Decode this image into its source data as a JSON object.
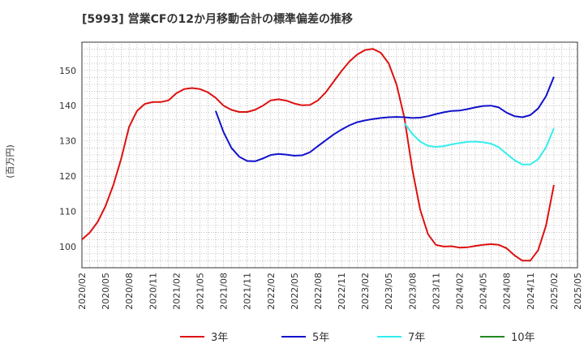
{
  "chart_data": {
    "type": "line",
    "title": "[5993]  営業CFの12か月移動合計の標準偏差の推移",
    "ylabel": "(百万円)",
    "xlabel": "",
    "ylim": [
      94,
      158
    ],
    "yticks": [
      100,
      110,
      120,
      130,
      140,
      150
    ],
    "xticks": [
      "2020/02",
      "2020/05",
      "2020/08",
      "2020/11",
      "2021/02",
      "2021/05",
      "2021/08",
      "2021/11",
      "2022/02",
      "2022/05",
      "2022/08",
      "2022/11",
      "2023/02",
      "2023/05",
      "2023/08",
      "2023/11",
      "2024/02",
      "2024/05",
      "2024/08",
      "2024/11",
      "2025/02",
      "2025/05"
    ],
    "grid": true,
    "legend_position": "bottom",
    "series": [
      {
        "name": "3年",
        "color": "#dd1111",
        "points": [
          [
            "2020/02",
            102
          ],
          [
            "2020/03",
            104
          ],
          [
            "2020/04",
            107
          ],
          [
            "2020/05",
            111.5
          ],
          [
            "2020/06",
            117.5
          ],
          [
            "2020/07",
            125
          ],
          [
            "2020/08",
            134
          ],
          [
            "2020/09",
            138.5
          ],
          [
            "2020/10",
            140.5
          ],
          [
            "2020/11",
            141
          ],
          [
            "2020/12",
            141
          ],
          [
            "2021/01",
            141.5
          ],
          [
            "2021/02",
            143.5
          ],
          [
            "2021/03",
            144.7
          ],
          [
            "2021/04",
            145
          ],
          [
            "2021/05",
            144.7
          ],
          [
            "2021/06",
            143.8
          ],
          [
            "2021/07",
            142.2
          ],
          [
            "2021/08",
            140
          ],
          [
            "2021/09",
            138.8
          ],
          [
            "2021/10",
            138.2
          ],
          [
            "2021/11",
            138.2
          ],
          [
            "2021/12",
            138.8
          ],
          [
            "2022/01",
            140
          ],
          [
            "2022/02",
            141.5
          ],
          [
            "2022/03",
            141.8
          ],
          [
            "2022/04",
            141.4
          ],
          [
            "2022/05",
            140.6
          ],
          [
            "2022/06",
            140.1
          ],
          [
            "2022/07",
            140.2
          ],
          [
            "2022/08",
            141.5
          ],
          [
            "2022/09",
            143.8
          ],
          [
            "2022/10",
            146.8
          ],
          [
            "2022/11",
            149.8
          ],
          [
            "2022/12",
            152.5
          ],
          [
            "2023/01",
            154.5
          ],
          [
            "2023/02",
            155.8
          ],
          [
            "2023/03",
            156.1
          ],
          [
            "2023/04",
            155
          ],
          [
            "2023/05",
            152
          ],
          [
            "2023/06",
            146
          ],
          [
            "2023/07",
            136.5
          ],
          [
            "2023/08",
            122
          ],
          [
            "2023/09",
            110.5
          ],
          [
            "2023/10",
            103.5
          ],
          [
            "2023/11",
            100.5
          ],
          [
            "2023/12",
            100
          ],
          [
            "2024/01",
            100.1
          ],
          [
            "2024/02",
            99.7
          ],
          [
            "2024/03",
            99.8
          ],
          [
            "2024/04",
            100.2
          ],
          [
            "2024/05",
            100.5
          ],
          [
            "2024/06",
            100.7
          ],
          [
            "2024/07",
            100.5
          ],
          [
            "2024/08",
            99.5
          ],
          [
            "2024/09",
            97.5
          ],
          [
            "2024/10",
            96
          ],
          [
            "2024/11",
            96
          ],
          [
            "2024/12",
            99
          ],
          [
            "2025/01",
            106
          ],
          [
            "2025/02",
            117.5
          ]
        ]
      },
      {
        "name": "5年",
        "color": "#1111cc",
        "points": [
          [
            "2021/07",
            138.5
          ],
          [
            "2021/08",
            132.5
          ],
          [
            "2021/09",
            128
          ],
          [
            "2021/10",
            125.5
          ],
          [
            "2021/11",
            124.3
          ],
          [
            "2021/12",
            124.2
          ],
          [
            "2022/01",
            125
          ],
          [
            "2022/02",
            126
          ],
          [
            "2022/03",
            126.3
          ],
          [
            "2022/04",
            126.1
          ],
          [
            "2022/05",
            125.8
          ],
          [
            "2022/06",
            125.9
          ],
          [
            "2022/07",
            126.8
          ],
          [
            "2022/08",
            128.5
          ],
          [
            "2022/09",
            130.2
          ],
          [
            "2022/10",
            131.8
          ],
          [
            "2022/11",
            133.2
          ],
          [
            "2022/12",
            134.4
          ],
          [
            "2023/01",
            135.3
          ],
          [
            "2023/02",
            135.8
          ],
          [
            "2023/03",
            136.2
          ],
          [
            "2023/04",
            136.5
          ],
          [
            "2023/05",
            136.7
          ],
          [
            "2023/06",
            136.8
          ],
          [
            "2023/07",
            136.7
          ],
          [
            "2023/08",
            136.5
          ],
          [
            "2023/09",
            136.6
          ],
          [
            "2023/10",
            137
          ],
          [
            "2023/11",
            137.6
          ],
          [
            "2023/12",
            138.1
          ],
          [
            "2024/01",
            138.5
          ],
          [
            "2024/02",
            138.6
          ],
          [
            "2024/03",
            139
          ],
          [
            "2024/04",
            139.5
          ],
          [
            "2024/05",
            139.9
          ],
          [
            "2024/06",
            140
          ],
          [
            "2024/07",
            139.5
          ],
          [
            "2024/08",
            138
          ],
          [
            "2024/09",
            137
          ],
          [
            "2024/10",
            136.7
          ],
          [
            "2024/11",
            137.3
          ],
          [
            "2024/12",
            139.2
          ],
          [
            "2025/01",
            142.7
          ],
          [
            "2025/02",
            148.2
          ]
        ]
      },
      {
        "name": "7年",
        "color": "#33eeee",
        "points": [
          [
            "2023/07",
            135
          ],
          [
            "2023/08",
            132
          ],
          [
            "2023/09",
            129.8
          ],
          [
            "2023/10",
            128.6
          ],
          [
            "2023/11",
            128.3
          ],
          [
            "2023/12",
            128.5
          ],
          [
            "2024/01",
            129
          ],
          [
            "2024/02",
            129.4
          ],
          [
            "2024/03",
            129.7
          ],
          [
            "2024/04",
            129.8
          ],
          [
            "2024/05",
            129.6
          ],
          [
            "2024/06",
            129.2
          ],
          [
            "2024/07",
            128.2
          ],
          [
            "2024/08",
            126.3
          ],
          [
            "2024/09",
            124.5
          ],
          [
            "2024/10",
            123.3
          ],
          [
            "2024/11",
            123.3
          ],
          [
            "2024/12",
            124.8
          ],
          [
            "2025/01",
            128.2
          ],
          [
            "2025/02",
            133.5
          ]
        ]
      },
      {
        "name": "10年",
        "color": "#228822",
        "points": []
      }
    ]
  }
}
